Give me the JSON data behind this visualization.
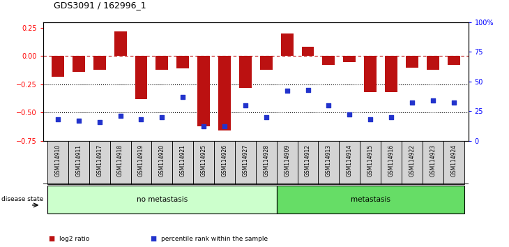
{
  "title": "GDS3091 / 162996_1",
  "samples": [
    "GSM114910",
    "GSM114911",
    "GSM114917",
    "GSM114918",
    "GSM114919",
    "GSM114920",
    "GSM114921",
    "GSM114925",
    "GSM114926",
    "GSM114927",
    "GSM114928",
    "GSM114909",
    "GSM114912",
    "GSM114913",
    "GSM114914",
    "GSM114915",
    "GSM114916",
    "GSM114922",
    "GSM114923",
    "GSM114924"
  ],
  "log2_ratio": [
    -0.18,
    -0.14,
    -0.12,
    0.22,
    -0.38,
    -0.12,
    -0.11,
    -0.62,
    -0.66,
    -0.28,
    -0.12,
    0.2,
    0.08,
    -0.08,
    -0.05,
    -0.32,
    -0.32,
    -0.1,
    -0.12,
    -0.08
  ],
  "percentile_rank": [
    18,
    17,
    16,
    21,
    18,
    20,
    37,
    12,
    12,
    30,
    20,
    42,
    43,
    30,
    22,
    18,
    20,
    32,
    34,
    32
  ],
  "no_metastasis_count": 11,
  "metastasis_count": 9,
  "bar_color": "#bb1111",
  "dot_color": "#2233cc",
  "ylim_left": [
    -0.75,
    0.3
  ],
  "ylim_right": [
    0,
    100
  ],
  "yticks_left": [
    -0.75,
    -0.5,
    -0.25,
    0,
    0.25
  ],
  "yticks_right": [
    0,
    25,
    50,
    75,
    100
  ],
  "ytick_labels_right": [
    "0",
    "25",
    "50",
    "75",
    "100%"
  ],
  "grid_values": [
    -0.25,
    -0.5
  ],
  "no_meta_color": "#ccffcc",
  "meta_color": "#66dd66",
  "label_box_color": "#d4d4d4",
  "legend_items": [
    "log2 ratio",
    "percentile rank within the sample"
  ]
}
